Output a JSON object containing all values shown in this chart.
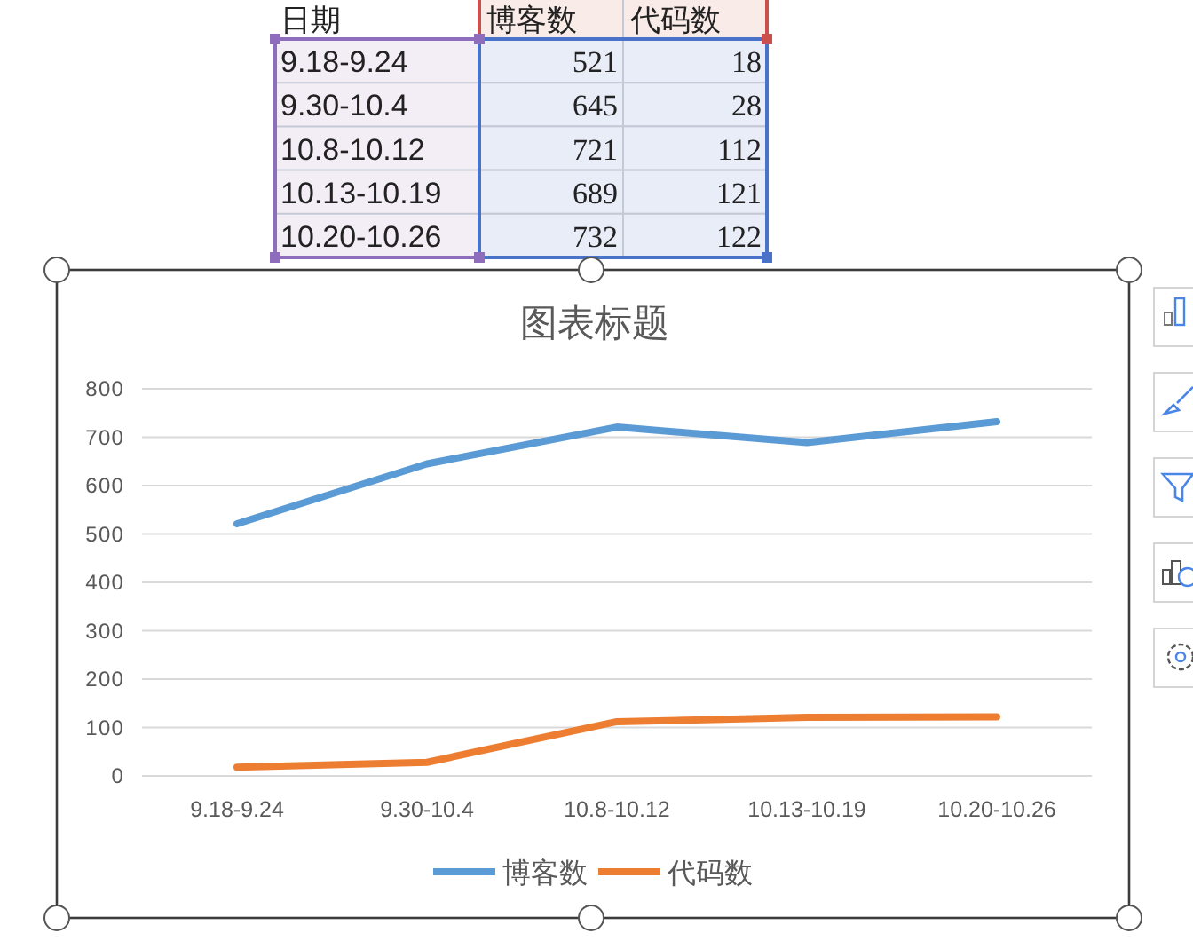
{
  "chart_data": [
    {
      "type": "heatmap",
      "categories": [
        "博客数",
        "代码数"
      ],
      "y_categories": [
        "9.18-9.24",
        "9.30-10.4",
        "10.8-10.12",
        "10.13-10.19",
        "10.20-10.26"
      ],
      "cells": [
        [
          521,
          18
        ],
        [
          645,
          28
        ],
        [
          721,
          112
        ],
        [
          689,
          121
        ],
        [
          732,
          122
        ]
      ],
      "data_labels": true,
      "annotations": [
        "日期"
      ]
    },
    {
      "type": "line",
      "title": "图表标题",
      "categories": [
        "9.18-9.24",
        "9.30-10.4",
        "10.8-10.12",
        "10.13-10.19",
        "10.20-10.26"
      ],
      "series": [
        {
          "name": "博客数",
          "color": "#5b9bd5",
          "values": [
            521,
            645,
            721,
            689,
            732
          ]
        },
        {
          "name": "代码数",
          "color": "#ed7d31",
          "values": [
            18,
            28,
            112,
            121,
            122
          ]
        }
      ],
      "ylim": [
        0,
        800
      ],
      "yticks": [
        0,
        100,
        200,
        300,
        400,
        500,
        600,
        700,
        800
      ],
      "grid": "y",
      "legend": "bottom"
    }
  ]
}
